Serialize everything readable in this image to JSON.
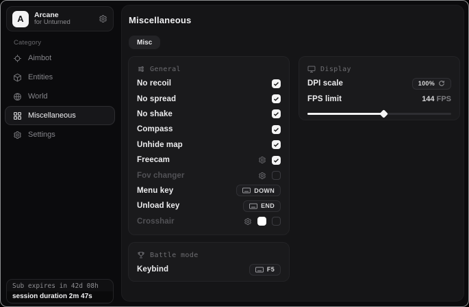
{
  "app": {
    "logo_letter": "A",
    "name": "Arcane",
    "subtitle": "for Unturned"
  },
  "colors": {
    "window_bg": "#0b0b0d",
    "main_bg": "#151517",
    "panel_bg": "#1a1a1c",
    "accent": "#f2f2f3",
    "checkbox_on": "#f4f4f5",
    "crosshair_color": "#ffffff"
  },
  "sidebar": {
    "category_label": "Category",
    "items": [
      {
        "label": "Aimbot",
        "icon": "crosshair-icon",
        "selected": false
      },
      {
        "label": "Entities",
        "icon": "cube-icon",
        "selected": false
      },
      {
        "label": "World",
        "icon": "globe-icon",
        "selected": false
      },
      {
        "label": "Miscellaneous",
        "icon": "grid-icon",
        "selected": true
      },
      {
        "label": "Settings",
        "icon": "gear-icon",
        "selected": false
      }
    ],
    "footer": {
      "expiry": "Sub expires in 42d 08h",
      "session": "session duration 2m 47s"
    }
  },
  "main": {
    "title": "Miscellaneous",
    "tabs": [
      {
        "label": "Misc",
        "active": true
      }
    ],
    "general": {
      "title": "General",
      "icon": "sliders-icon",
      "rows": [
        {
          "label": "No recoil",
          "type": "checkbox",
          "checked": true
        },
        {
          "label": "No spread",
          "type": "checkbox",
          "checked": true
        },
        {
          "label": "No shake",
          "type": "checkbox",
          "checked": true
        },
        {
          "label": "Compass",
          "type": "checkbox",
          "checked": true
        },
        {
          "label": "Unhide map",
          "type": "checkbox",
          "checked": true
        },
        {
          "label": "Freecam",
          "type": "gear+checkbox",
          "checked": true
        },
        {
          "label": "Fov changer",
          "type": "gear+checkbox",
          "checked": false,
          "disabled": true
        },
        {
          "label": "Menu key",
          "type": "keybind",
          "key": "DOWN"
        },
        {
          "label": "Unload key",
          "type": "keybind",
          "key": "END"
        },
        {
          "label": "Crosshair",
          "type": "gear+color+checkbox",
          "checked": false,
          "disabled": true,
          "color": "#ffffff"
        }
      ]
    },
    "battle": {
      "title": "Battle mode",
      "icon": "trophy-icon",
      "rows": [
        {
          "label": "Keybind",
          "type": "keybind",
          "key": "F5"
        }
      ]
    },
    "display": {
      "title": "Display",
      "icon": "monitor-icon",
      "dpi": {
        "label": "DPI scale",
        "value": "100%"
      },
      "fps": {
        "label": "FPS limit",
        "value": "144",
        "unit": " FPS",
        "slider_percent": 53
      }
    }
  }
}
